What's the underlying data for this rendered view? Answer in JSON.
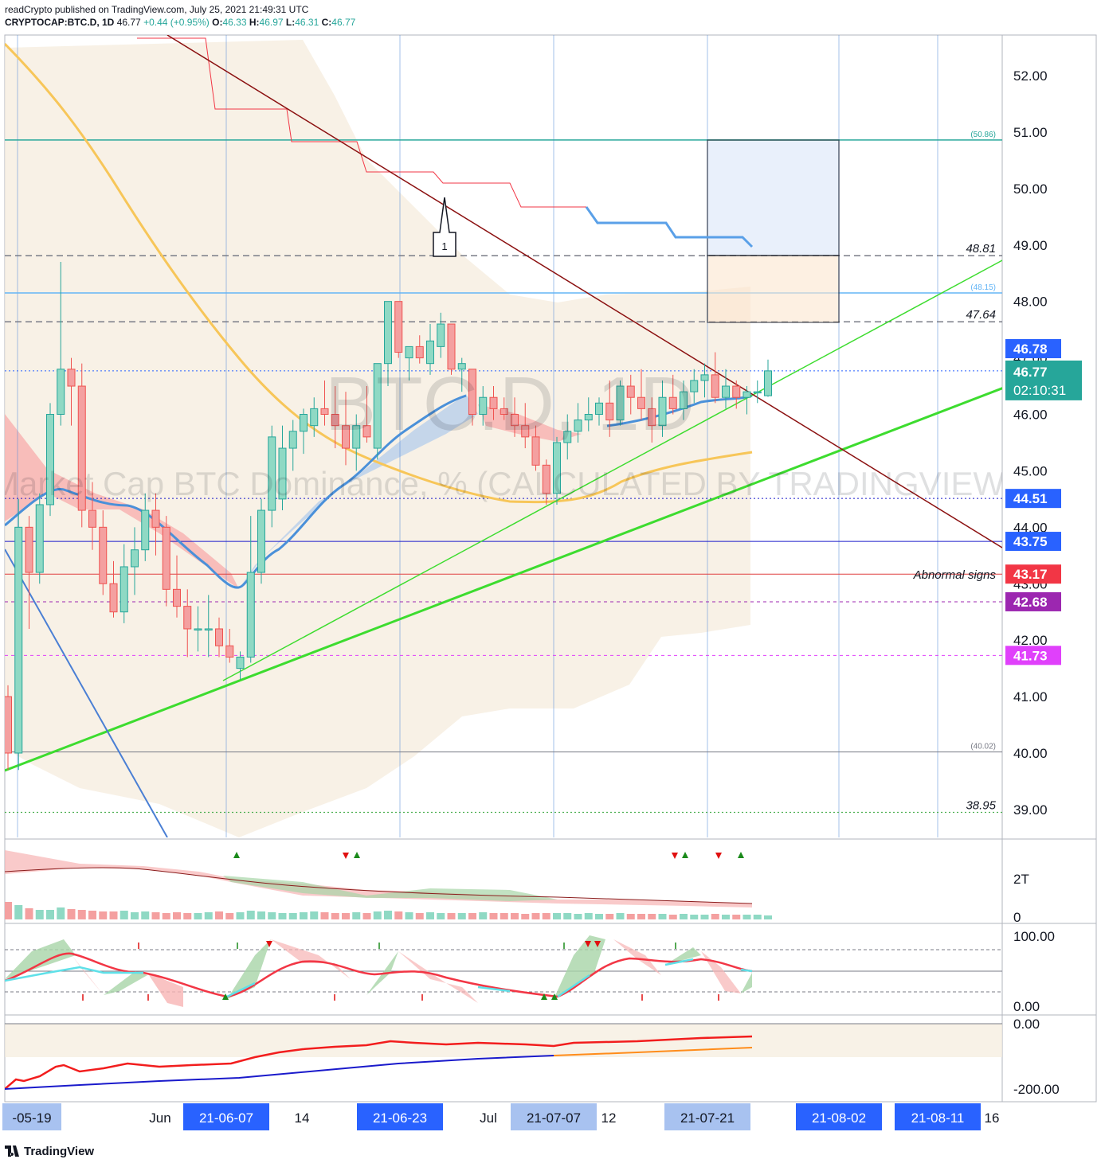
{
  "header": {
    "publisher_line": "readCrypto published on TradingView.com, July 25, 2021 21:49:31 UTC",
    "symbol": "CRYPTOCAP:BTC.D, 1D",
    "last": "46.77",
    "change": "+0.44 (+0.95%)",
    "o_label": "O:",
    "o_value": "46.33",
    "h_label": "H:",
    "h_value": "46.97",
    "l_label": "L:",
    "l_value": "46.31",
    "c_label": "C:",
    "c_value": "46.77"
  },
  "watermark": {
    "line1": "BTC.D, 1D",
    "line2": "Market Cap BTC Dominance, % (CALCULATED BY TRADINGVIEW)"
  },
  "footer": {
    "brand": "TradingView"
  },
  "chart_data": {
    "type": "candlestick",
    "ylim": [
      38.5,
      52.7
    ],
    "y_ticks": [
      "52.00",
      "51.00",
      "50.00",
      "49.00",
      "48.00",
      "47.00",
      "46.00",
      "45.00",
      "44.00",
      "43.00",
      "42.00",
      "41.00",
      "40.00",
      "39.00"
    ],
    "x_labels": [
      {
        "text": "-05-19",
        "boxed": true,
        "color": "#2962ff"
      },
      {
        "text": "Jun",
        "boxed": false
      },
      {
        "text": "21-06-07",
        "boxed": true,
        "color": "#2962ff"
      },
      {
        "text": "14",
        "boxed": false
      },
      {
        "text": "21-06-23",
        "boxed": true,
        "color": "#2962ff"
      },
      {
        "text": "Jul",
        "boxed": false
      },
      {
        "text": "21-07-07",
        "boxed": true,
        "color": "#2962ff"
      },
      {
        "text": "12",
        "boxed": false
      },
      {
        "text": "21-07-21",
        "boxed": true,
        "color": "#2962ff"
      },
      {
        "text": "21-08-02",
        "boxed": true,
        "color": "#2962ff"
      },
      {
        "text": "21-08-11",
        "boxed": true,
        "color": "#2962ff"
      },
      {
        "text": "16",
        "boxed": false
      }
    ],
    "price_labels": [
      {
        "value": 46.78,
        "text": "46.78",
        "color": "#2962ff"
      },
      {
        "value": 46.77,
        "text": "46.77",
        "sub": "02:10:31",
        "color": "#26a69a"
      },
      {
        "value": 44.51,
        "text": "44.51",
        "color": "#2962ff"
      },
      {
        "value": 43.75,
        "text": "43.75",
        "color": "#2962ff"
      },
      {
        "value": 43.17,
        "text": "43.17",
        "color": "#f23645"
      },
      {
        "value": 42.68,
        "text": "42.68",
        "color": "#9c27b0"
      },
      {
        "value": 41.73,
        "text": "41.73",
        "color": "#e040fb"
      }
    ],
    "levels": [
      {
        "value": 50.86,
        "text": "(50.86)",
        "color": "#26a69a"
      },
      {
        "value": 48.81,
        "text": "48.81",
        "color": "#787b86"
      },
      {
        "value": 48.15,
        "text": "(48.15)",
        "color": "#64b5f6"
      },
      {
        "value": 47.64,
        "text": "47.64",
        "color": "#787b86"
      },
      {
        "value": 40.02,
        "text": "(40.02)",
        "color": "#787b86"
      },
      {
        "value": 38.95,
        "text": "38.95",
        "color": "#4caf50"
      }
    ],
    "annotation_abnormal": "Abnormal signs",
    "callout_label": "1",
    "candles": [
      [
        41.0,
        41.2,
        39.7,
        40.0
      ],
      [
        40.0,
        44.5,
        39.7,
        44.0
      ],
      [
        44.0,
        44.2,
        42.2,
        43.2
      ],
      [
        43.2,
        44.6,
        43.0,
        44.4
      ],
      [
        44.4,
        46.2,
        44.2,
        46.0
      ],
      [
        46.0,
        48.7,
        45.8,
        46.8
      ],
      [
        46.8,
        47.0,
        45.8,
        46.5
      ],
      [
        46.5,
        46.9,
        44.0,
        44.3
      ],
      [
        44.3,
        44.8,
        43.6,
        44.0
      ],
      [
        44.0,
        44.3,
        42.8,
        43.0
      ],
      [
        43.0,
        43.4,
        42.4,
        42.5
      ],
      [
        42.5,
        43.7,
        42.3,
        43.3
      ],
      [
        43.3,
        44.0,
        42.8,
        43.6
      ],
      [
        43.6,
        44.6,
        43.4,
        44.3
      ],
      [
        44.3,
        44.6,
        43.5,
        44.0
      ],
      [
        44.0,
        44.2,
        42.6,
        42.9
      ],
      [
        42.9,
        43.5,
        42.4,
        42.6
      ],
      [
        42.6,
        42.9,
        41.7,
        42.2
      ],
      [
        42.2,
        42.6,
        41.8,
        42.2
      ],
      [
        42.2,
        42.8,
        41.7,
        42.2
      ],
      [
        42.2,
        42.4,
        41.7,
        41.9
      ],
      [
        41.9,
        42.2,
        41.6,
        41.7
      ],
      [
        41.5,
        41.8,
        41.3,
        41.7
      ],
      [
        41.7,
        44.2,
        41.6,
        43.2
      ],
      [
        43.2,
        44.5,
        43.0,
        44.3
      ],
      [
        44.3,
        45.8,
        44.0,
        45.6
      ],
      [
        44.5,
        45.8,
        44.3,
        45.4
      ],
      [
        45.4,
        45.9,
        45.0,
        45.7
      ],
      [
        45.7,
        46.1,
        45.3,
        46.0
      ],
      [
        45.8,
        46.3,
        45.6,
        46.1
      ],
      [
        46.1,
        46.6,
        45.8,
        46.0
      ],
      [
        46.0,
        46.5,
        45.4,
        45.8
      ],
      [
        45.8,
        46.4,
        45.1,
        45.4
      ],
      [
        45.4,
        46.0,
        45.0,
        45.8
      ],
      [
        45.8,
        46.5,
        45.5,
        45.6
      ],
      [
        45.4,
        46.9,
        45.2,
        46.9
      ],
      [
        46.9,
        48.0,
        46.5,
        48.0
      ],
      [
        48.0,
        48.0,
        47.0,
        47.1
      ],
      [
        47.0,
        47.2,
        46.6,
        47.2
      ],
      [
        47.2,
        47.4,
        46.9,
        47.0
      ],
      [
        46.9,
        47.6,
        46.7,
        47.3
      ],
      [
        47.2,
        47.8,
        47.0,
        47.6
      ],
      [
        47.6,
        47.6,
        46.7,
        46.8
      ],
      [
        46.8,
        47.0,
        46.4,
        46.9
      ],
      [
        46.8,
        46.8,
        45.8,
        46.0
      ],
      [
        46.0,
        46.5,
        45.8,
        46.3
      ],
      [
        46.3,
        46.5,
        45.9,
        46.1
      ],
      [
        46.1,
        46.3,
        45.9,
        46.0
      ],
      [
        46.0,
        46.3,
        45.6,
        45.8
      ],
      [
        45.8,
        46.2,
        45.4,
        45.6
      ],
      [
        45.6,
        45.8,
        45.0,
        45.1
      ],
      [
        45.1,
        45.2,
        44.4,
        44.6
      ],
      [
        44.6,
        45.6,
        44.4,
        45.5
      ],
      [
        45.5,
        46.0,
        45.2,
        45.7
      ],
      [
        45.7,
        46.2,
        45.5,
        45.9
      ],
      [
        45.9,
        46.3,
        45.7,
        46.0
      ],
      [
        46.0,
        46.3,
        45.8,
        46.2
      ],
      [
        46.2,
        46.6,
        45.6,
        45.9
      ],
      [
        45.9,
        46.6,
        45.8,
        46.5
      ],
      [
        46.5,
        46.7,
        46.0,
        46.3
      ],
      [
        46.3,
        46.8,
        45.9,
        46.1
      ],
      [
        46.1,
        46.3,
        45.5,
        45.8
      ],
      [
        45.8,
        46.6,
        45.6,
        46.3
      ],
      [
        46.3,
        46.7,
        46.0,
        46.1
      ],
      [
        46.1,
        46.6,
        45.9,
        46.4
      ],
      [
        46.4,
        46.8,
        46.2,
        46.6
      ],
      [
        46.6,
        46.9,
        46.3,
        46.7
      ],
      [
        46.7,
        47.1,
        46.2,
        46.3
      ],
      [
        46.3,
        46.8,
        46.1,
        46.5
      ],
      [
        46.5,
        46.6,
        46.1,
        46.3
      ],
      [
        46.3,
        46.5,
        46.0,
        46.4
      ],
      [
        46.4,
        46.6,
        46.2,
        46.4
      ],
      [
        46.33,
        46.97,
        46.31,
        46.77
      ]
    ],
    "indicators": [
      {
        "name": "volume",
        "y_ticks": [
          "2T",
          "0"
        ]
      },
      {
        "name": "oscillator",
        "y_ticks": [
          "100.00",
          "0.00"
        ]
      },
      {
        "name": "lower",
        "y_ticks": [
          "0.00",
          "-200.00"
        ]
      }
    ]
  }
}
